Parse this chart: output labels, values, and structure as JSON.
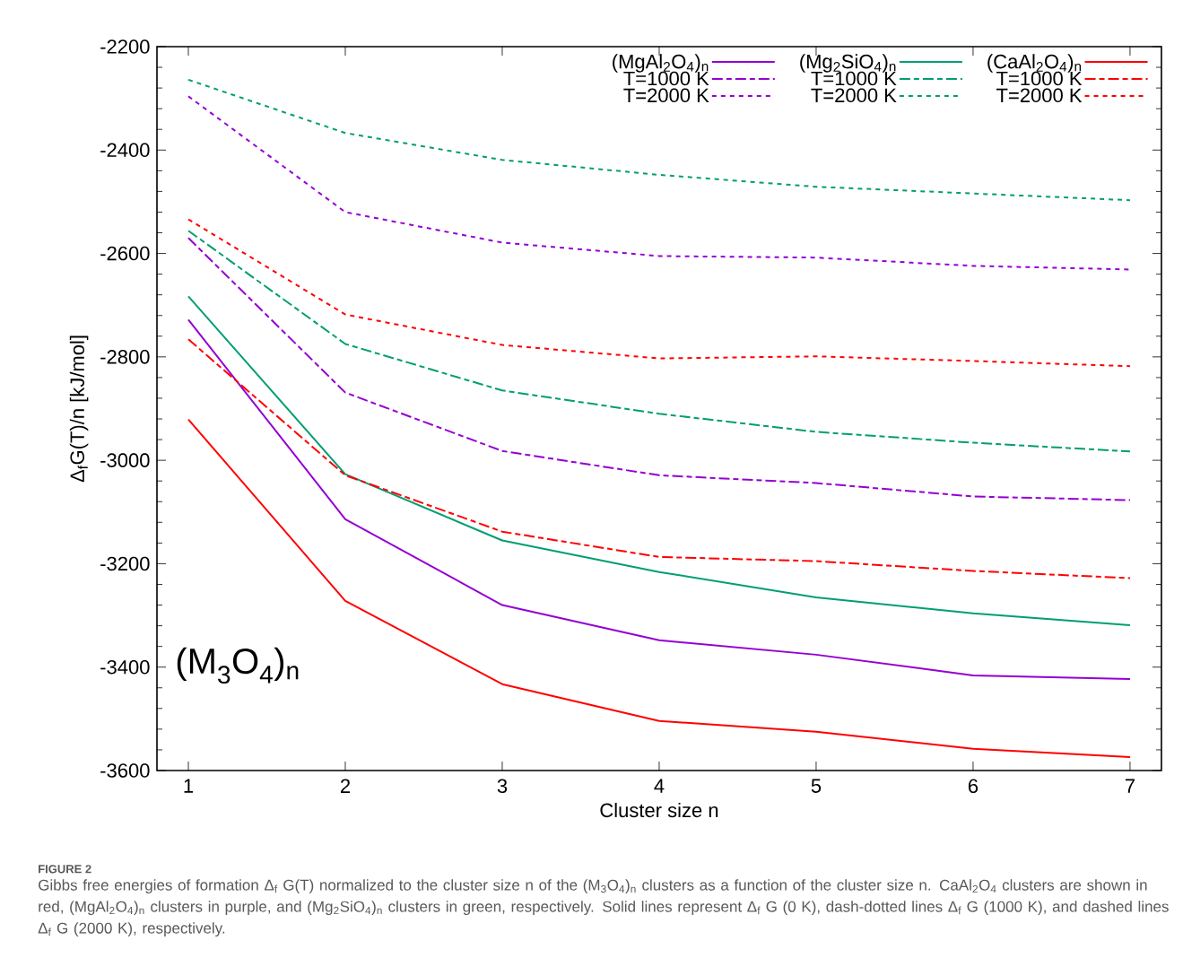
{
  "chart_data": {
    "type": "line",
    "xlabel": "Cluster size n",
    "ylabel": "Δ$_{f}$G(T)/n  [kJ/mol]",
    "x": [
      1,
      2,
      3,
      4,
      5,
      6,
      7
    ],
    "xlim": [
      0.8,
      7.2
    ],
    "xticks": [
      1,
      2,
      3,
      4,
      5,
      6,
      7
    ],
    "ylim": [
      -3600,
      -2200
    ],
    "yticks": [
      -3600,
      -3400,
      -3200,
      -3000,
      -2800,
      -2600,
      -2400,
      -2200
    ],
    "legend": "top right",
    "series": [
      {
        "name": "(MgAl$_{2}$O$_{4}$)$_{n}$",
        "color": "#9400d3",
        "line_style": "solid",
        "values": [
          -2728,
          -3114,
          -3280,
          -3348,
          -3376,
          -3416,
          -3423
        ]
      },
      {
        "name": "(Mg$_{2}$SiO$_{4}$)$_{n}$",
        "color": "#009e73",
        "line_style": "solid",
        "values": [
          -2683,
          -3027,
          -3155,
          -3216,
          -3265,
          -3296,
          -3319
        ]
      },
      {
        "name": "(CaAl$_{2}$O$_{4}$)$_{n}$",
        "color": "#ff0000",
        "line_style": "solid",
        "values": [
          -2921,
          -3272,
          -3433,
          -3504,
          -3525,
          -3558,
          -3574
        ]
      },
      {
        "name": "T=1000 K",
        "color": "#9400d3",
        "line_style": "dashed",
        "values": [
          -2570,
          -2869,
          -2982,
          -3029,
          -3044,
          -3070,
          -3077
        ]
      },
      {
        "name": "T=1000 K",
        "color": "#009e73",
        "line_style": "dashed",
        "values": [
          -2556,
          -2775,
          -2865,
          -2910,
          -2945,
          -2966,
          -2983
        ]
      },
      {
        "name": "T=1000 K",
        "color": "#ff0000",
        "line_style": "dashed",
        "values": [
          -2766,
          -3029,
          -3138,
          -3187,
          -3195,
          -3214,
          -3228
        ]
      },
      {
        "name": "T=2000 K",
        "color": "#9400d3",
        "line_style": "dotted",
        "values": [
          -2296,
          -2520,
          -2579,
          -2605,
          -2608,
          -2624,
          -2631
        ]
      },
      {
        "name": "T=2000 K",
        "color": "#009e73",
        "line_style": "dotted",
        "values": [
          -2264,
          -2367,
          -2419,
          -2448,
          -2471,
          -2484,
          -2497
        ]
      },
      {
        "name": "T=2000 K",
        "color": "#ff0000",
        "line_style": "dotted",
        "values": [
          -2534,
          -2718,
          -2777,
          -2803,
          -2799,
          -2808,
          -2818
        ]
      }
    ],
    "annotations": [
      "(M$_{3}$O$_{4}$)$_{n}$",
      "FIGURE 2",
      "Gibbs free energies of formation Δ$_{f}$ G(T) normalized to the cluster size n of the (M$_{3}$O$_{4}$)$_{n}$ clusters as a function of the cluster size n. CaAl$_{2}$O$_{4}$ clusters are shown in red, (MgAl$_{2}$O$_{4}$)$_{n}$ clusters in purple, and (Mg$_{2}$SiO$_{4}$)$_{n}$ clusters in green, respectively. Solid lines represent Δ$_{f}$ G (0 K), dash-dotted lines Δ$_{f}$ G (1000 K), and dashed lines Δ$_{f}$ G (2000 K), respectively."
    ]
  }
}
